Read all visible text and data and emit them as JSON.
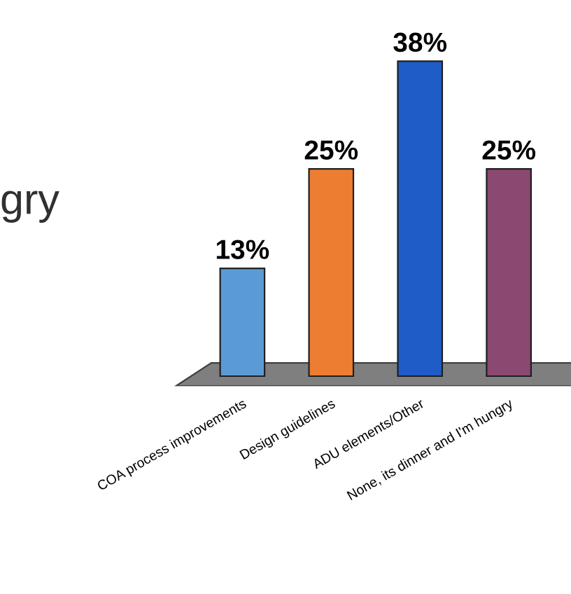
{
  "chart_data": {
    "type": "bar",
    "categories": [
      "COA process improvements",
      "Design guidelines",
      "ADU elements/Other",
      "None, its dinner and I'm hungry"
    ],
    "values": [
      13,
      25,
      38,
      25
    ],
    "colors": [
      "#5b9bd5",
      "#ed7d31",
      "#1f5cc8",
      "#8b4870"
    ],
    "value_labels": [
      "13%",
      "25%",
      "38%",
      "25%"
    ],
    "annotations": [
      "gry"
    ]
  }
}
